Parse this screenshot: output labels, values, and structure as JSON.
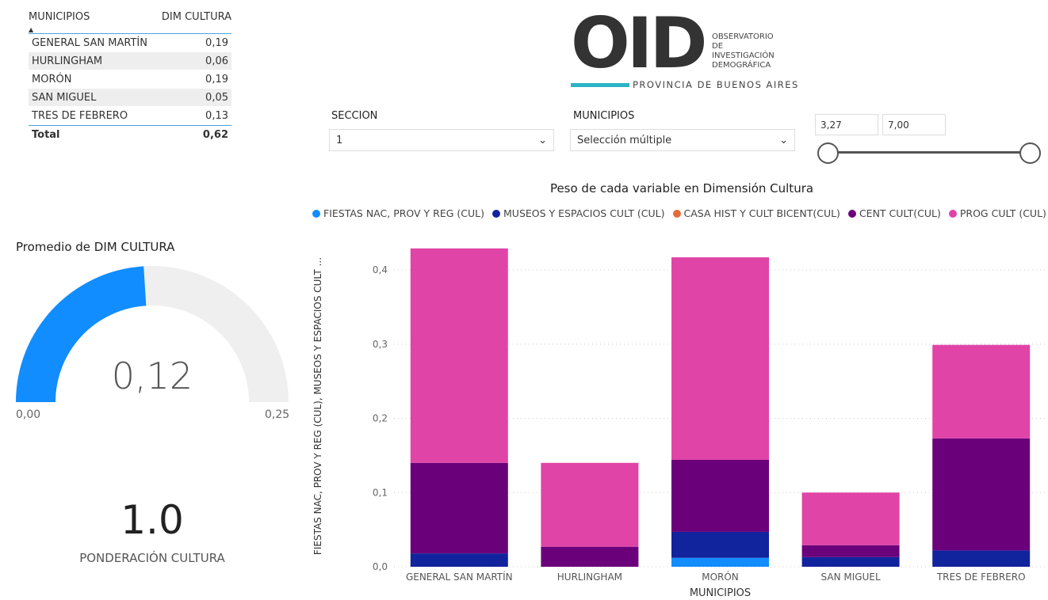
{
  "table": {
    "headers": [
      "MUNICIPIOS",
      "DIM CULTURA"
    ],
    "rows": [
      [
        "GENERAL SAN MARTÍN",
        "0,19"
      ],
      [
        "HURLINGHAM",
        "0,06"
      ],
      [
        "MORÓN",
        "0,19"
      ],
      [
        "SAN MIGUEL",
        "0,05"
      ],
      [
        "TRES DE FEBRERO",
        "0,13"
      ]
    ],
    "total": [
      "Total",
      "0,62"
    ]
  },
  "logo": {
    "big": "OID",
    "line1": "OBSERVATORIO",
    "line2": "DE INVESTIGACIÓN",
    "line3": "DEMOGRÁFICA",
    "sub": "PROVINCIA DE BUENOS AIRES"
  },
  "filters": {
    "seccion_label": "SECCION",
    "seccion_value": "1",
    "municipios_label": "MUNICIPIOS",
    "municipios_value": "Selección múltiple",
    "range_min": "3,27",
    "range_max": "7,00"
  },
  "gauge": {
    "title": "Promedio de DIM CULTURA",
    "value": "0,12",
    "min": "0,00",
    "max": "0,25",
    "fraction": 0.48
  },
  "card": {
    "value": "1.0",
    "label": "PONDERACIÓN CULTURA"
  },
  "chart_data": {
    "type": "bar",
    "stacked": true,
    "title": "Peso de cada variable en Dimensión Cultura",
    "xlabel": "MUNICIPIOS",
    "ylabel": "FIESTAS NAC, PROV Y REG (CUL), MUSEOS Y ESPACIOS CULT ...",
    "ylim": [
      0,
      0.43
    ],
    "yticks": [
      "0,0",
      "0,1",
      "0,2",
      "0,3",
      "0,4"
    ],
    "ytick_values": [
      0,
      0.1,
      0.2,
      0.3,
      0.4
    ],
    "categories": [
      "GENERAL SAN MARTÍN",
      "HURLINGHAM",
      "MORÓN",
      "SAN MIGUEL",
      "TRES DE FEBRERO"
    ],
    "series": [
      {
        "name": "FIESTAS NAC, PROV Y REG (CUL)",
        "color": "#118dff",
        "values": [
          0,
          0,
          0.012,
          0,
          0
        ]
      },
      {
        "name": "MUSEOS Y ESPACIOS CULT (CUL)",
        "color": "#12239e",
        "values": [
          0.018,
          0,
          0.035,
          0.013,
          0.022
        ]
      },
      {
        "name": "CASA HIST Y CULT BICENT(CUL)",
        "color": "#e66c37",
        "values": [
          0,
          0,
          0,
          0,
          0
        ]
      },
      {
        "name": "CENT CULT(CUL)",
        "color": "#6b007b",
        "values": [
          0.122,
          0.027,
          0.097,
          0.016,
          0.151
        ]
      },
      {
        "name": "PROG CULT (CUL)",
        "color": "#e044a7",
        "values": [
          0.289,
          0.113,
          0.273,
          0.071,
          0.126
        ]
      }
    ]
  }
}
